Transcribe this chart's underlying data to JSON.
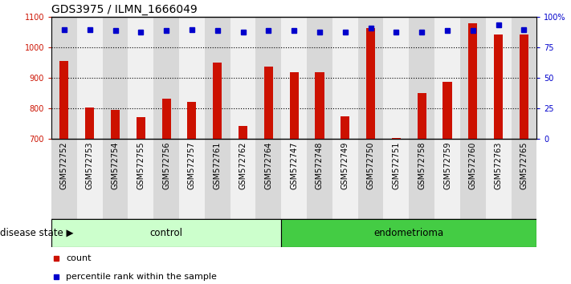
{
  "title": "GDS3975 / ILMN_1666049",
  "samples": [
    "GSM572752",
    "GSM572753",
    "GSM572754",
    "GSM572755",
    "GSM572756",
    "GSM572757",
    "GSM572761",
    "GSM572762",
    "GSM572764",
    "GSM572747",
    "GSM572748",
    "GSM572749",
    "GSM572750",
    "GSM572751",
    "GSM572758",
    "GSM572759",
    "GSM572760",
    "GSM572763",
    "GSM572765"
  ],
  "counts": [
    955,
    803,
    797,
    773,
    833,
    822,
    952,
    743,
    938,
    920,
    920,
    775,
    1065,
    705,
    852,
    887,
    1080,
    1042,
    1043
  ],
  "percentile_y": [
    1058,
    1058,
    1055,
    1052,
    1055,
    1058,
    1055,
    1052,
    1055,
    1055,
    1052,
    1052,
    1065,
    1052,
    1052,
    1055,
    1055,
    1075,
    1058
  ],
  "ylim_left": [
    700,
    1100
  ],
  "ylim_right": [
    0,
    100
  ],
  "yticks_left": [
    700,
    800,
    900,
    1000,
    1100
  ],
  "yticks_right": [
    0,
    25,
    50,
    75,
    100
  ],
  "yticks_right_labels": [
    "0",
    "25",
    "50",
    "75",
    "100%"
  ],
  "control_count": 9,
  "endometrioma_count": 10,
  "bar_color": "#cc1100",
  "dot_color": "#0000cc",
  "control_label": "control",
  "endometrioma_label": "endometrioma",
  "disease_state_label": "disease state",
  "legend_count": "count",
  "legend_percentile": "percentile rank within the sample",
  "title_fontsize": 10,
  "tick_fontsize": 7,
  "label_fontsize": 8.5,
  "legend_fontsize": 8,
  "bg_color": "#ffffff",
  "col_bg_even": "#d8d8d8",
  "col_bg_odd": "#f0f0f0",
  "control_bg": "#ccffcc",
  "endometrioma_bg": "#44cc44",
  "dotted_grid_color": "#000000"
}
